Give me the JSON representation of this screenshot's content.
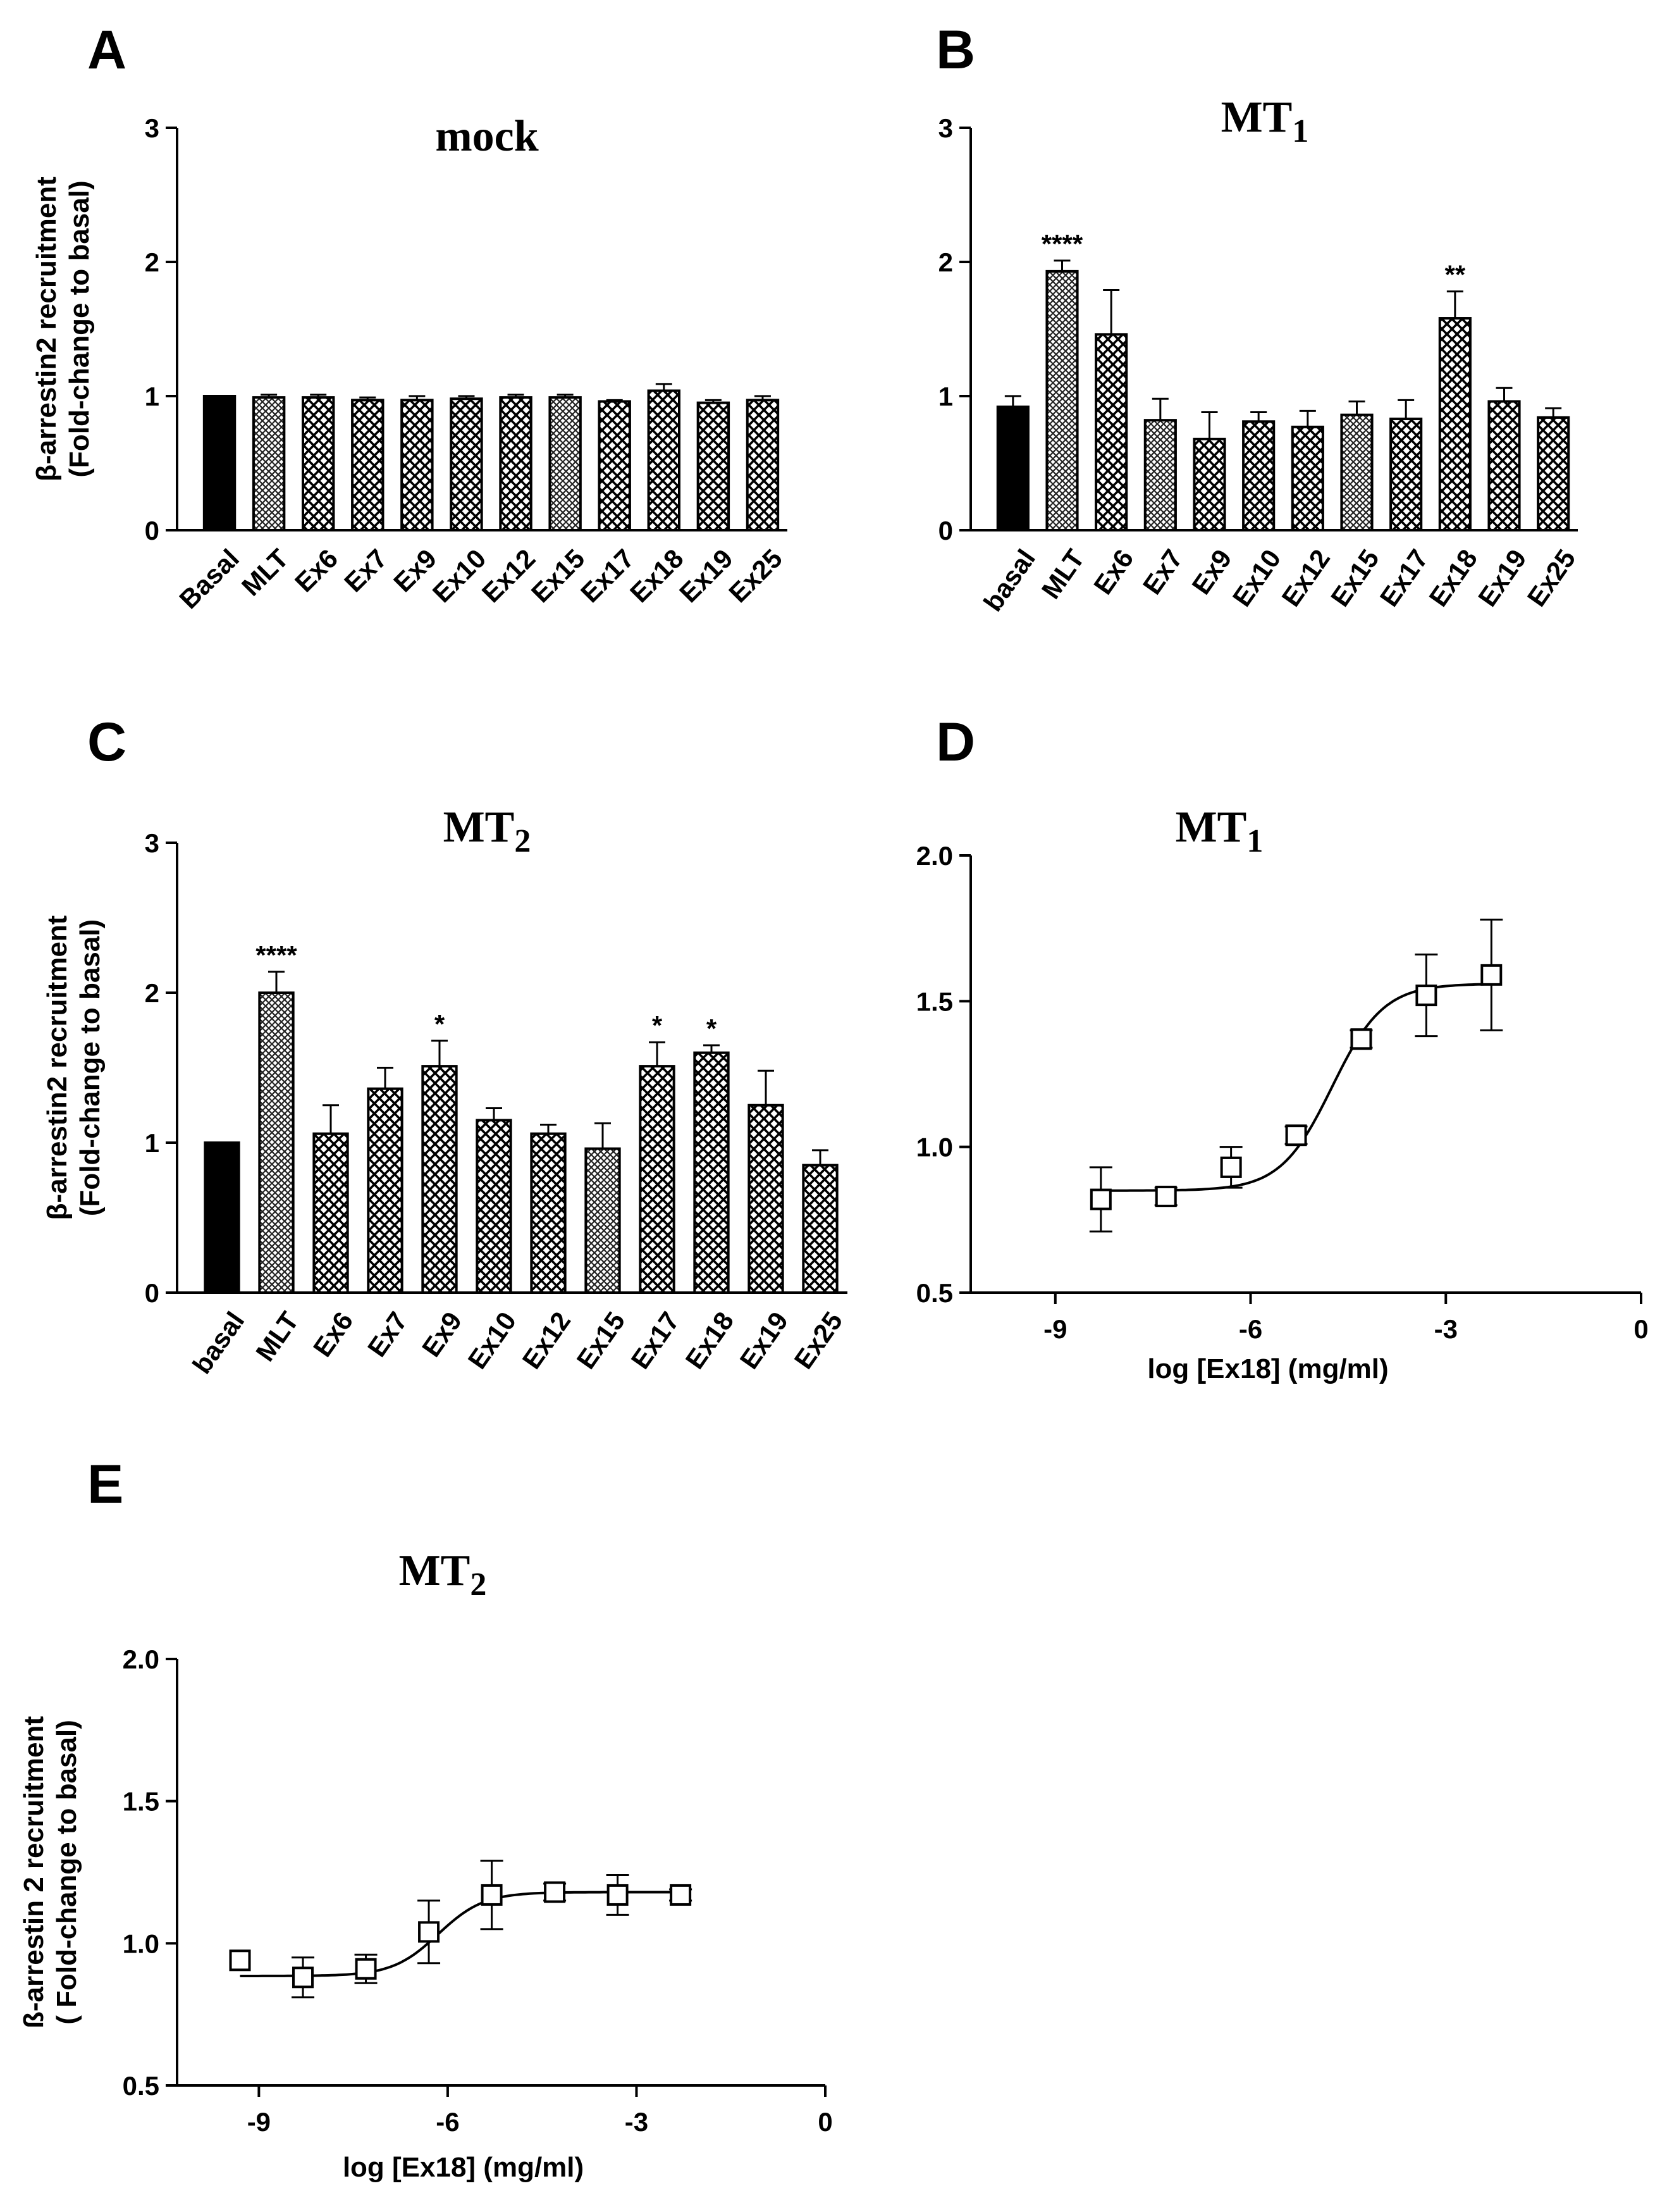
{
  "chart_data": [
    {
      "panel": "A",
      "type": "bar",
      "title": "mock",
      "ylabel": [
        "β-arrestin2 recruitment",
        "(Fold-change to basal)"
      ],
      "xlabel": "",
      "ylim": [
        0,
        3
      ],
      "yticks": [
        0,
        1,
        2,
        3
      ],
      "categories": [
        "Basal",
        "MLT",
        "Ex6",
        "Ex7",
        "Ex9",
        "Ex10",
        "Ex12",
        "Ex15",
        "Ex17",
        "Ex18",
        "Ex19",
        "Ex25"
      ],
      "values": [
        1.0,
        0.99,
        0.99,
        0.97,
        0.97,
        0.98,
        0.99,
        0.99,
        0.96,
        1.04,
        0.95,
        0.97
      ],
      "errors": [
        0,
        0.02,
        0.02,
        0.02,
        0.03,
        0.02,
        0.02,
        0.02,
        0.01,
        0.05,
        0.02,
        0.03
      ],
      "significance": [
        "",
        "",
        "",
        "",
        "",
        "",
        "",
        "",
        "",
        "",
        "",
        ""
      ]
    },
    {
      "panel": "B",
      "type": "bar",
      "title": "MT",
      "title_sub": "1",
      "ylabel": [
        "",
        ""
      ],
      "xlabel": "",
      "ylim": [
        0,
        3
      ],
      "yticks": [
        0,
        1,
        2,
        3
      ],
      "categories": [
        "basal",
        "MLT",
        "Ex6",
        "Ex7",
        "Ex9",
        "Ex10",
        "Ex12",
        "Ex15",
        "Ex17",
        "Ex18",
        "Ex19",
        "Ex25"
      ],
      "values": [
        0.92,
        1.93,
        1.46,
        0.82,
        0.68,
        0.81,
        0.77,
        0.86,
        0.83,
        1.58,
        0.96,
        0.84
      ],
      "errors": [
        0.08,
        0.08,
        0.33,
        0.16,
        0.2,
        0.07,
        0.12,
        0.1,
        0.14,
        0.2,
        0.1,
        0.07
      ],
      "significance": [
        "",
        "****",
        "",
        "",
        "",
        "",
        "",
        "",
        "",
        "**",
        "",
        ""
      ]
    },
    {
      "panel": "C",
      "type": "bar",
      "title": "MT",
      "title_sub": "2",
      "ylabel": [
        "β-arrestin2 recruitment",
        "(Fold-change to basal)"
      ],
      "xlabel": "",
      "ylim": [
        0,
        3
      ],
      "yticks": [
        0,
        1,
        2,
        3
      ],
      "categories": [
        "basal",
        "MLT",
        "Ex6",
        "Ex7",
        "Ex9",
        "Ex10",
        "Ex12",
        "Ex15",
        "Ex17",
        "Ex18",
        "Ex19",
        "Ex25"
      ],
      "values": [
        1.0,
        2.0,
        1.06,
        1.36,
        1.51,
        1.15,
        1.06,
        0.96,
        1.51,
        1.6,
        1.25,
        0.85
      ],
      "errors": [
        0,
        0.14,
        0.19,
        0.14,
        0.17,
        0.08,
        0.06,
        0.17,
        0.16,
        0.05,
        0.23,
        0.1
      ],
      "significance": [
        "",
        "****",
        "",
        "",
        "*",
        "",
        "",
        "",
        "*",
        "*",
        "",
        ""
      ]
    },
    {
      "panel": "D",
      "type": "scatter",
      "title": "MT",
      "title_sub": "1",
      "xlabel": "log [Ex18] (mg/ml)",
      "ylabel": [
        "",
        ""
      ],
      "xlim": [
        -10.3,
        0
      ],
      "ylim": [
        0.5,
        2.0
      ],
      "xticks": [
        -9,
        -6,
        -3,
        0
      ],
      "yticks": [
        0.5,
        1.0,
        1.5,
        2.0
      ],
      "x": [
        -8.3,
        -7.3,
        -6.3,
        -5.3,
        -4.3,
        -3.3,
        -2.3
      ],
      "y": [
        0.82,
        0.83,
        0.93,
        1.04,
        1.37,
        1.52,
        1.59
      ],
      "errors": [
        0.11,
        0.03,
        0.07,
        0.03,
        0.03,
        0.14,
        0.19
      ],
      "fit": {
        "bottom": 0.85,
        "top": 1.56,
        "logec50": -4.75,
        "hill": 1.1
      }
    },
    {
      "panel": "E",
      "type": "scatter",
      "title": "MT",
      "title_sub": "2",
      "xlabel": "log [Ex18] (mg/ml)",
      "ylabel": [
        "ß-arrestin 2 recruitment",
        "( Fold-change to basal)"
      ],
      "xlim": [
        -10.3,
        0
      ],
      "ylim": [
        0.5,
        2.0
      ],
      "xticks": [
        -9,
        -6,
        -3,
        0
      ],
      "yticks": [
        0.5,
        1.0,
        1.5,
        2.0
      ],
      "x": [
        -9.3,
        -8.3,
        -7.3,
        -6.3,
        -5.3,
        -4.3,
        -3.3,
        -2.3
      ],
      "y": [
        0.94,
        0.88,
        0.91,
        1.04,
        1.17,
        1.18,
        1.17,
        1.17
      ],
      "errors": [
        0,
        0.07,
        0.05,
        0.11,
        0.12,
        0.03,
        0.07,
        0.02
      ],
      "fit": {
        "bottom": 0.885,
        "top": 1.18,
        "logec50": -6.15,
        "hill": 1.2
      }
    }
  ],
  "tick_format": {
    "bar_y": [
      "0",
      "1",
      "2",
      "3"
    ],
    "dose_y": [
      "0.5",
      "1.0",
      "1.5",
      "2.0"
    ],
    "dose_x": [
      "-9",
      "-6",
      "-3",
      "0"
    ]
  }
}
